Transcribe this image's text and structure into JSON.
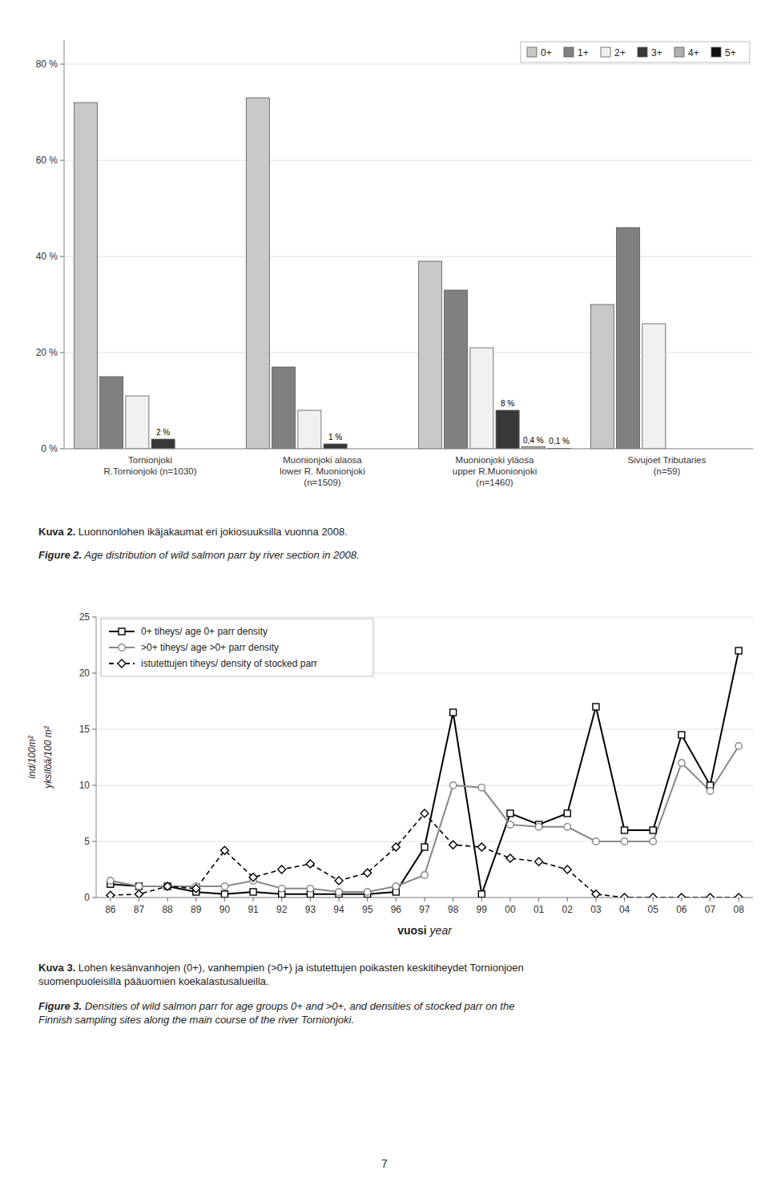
{
  "chart_data": [
    {
      "type": "bar",
      "categories": [
        "Tornionjoki\nR.Tornionjoki (n=1030)",
        "Muonionjoki alaosa\nlower R. Muonionjoki\n(n=1509)",
        "Muonionjoki yläosa\nupper R.Muonionjoki\n(n=1460)",
        "Sivujoet Tributaries\n(n=59)"
      ],
      "series": [
        {
          "name": "0+",
          "color": "#c8c8c8",
          "values": [
            72,
            73,
            39,
            30
          ]
        },
        {
          "name": "1+",
          "color": "#808080",
          "values": [
            15,
            17,
            33,
            46
          ]
        },
        {
          "name": "2+",
          "color": "#f0f0f0",
          "values": [
            11,
            8,
            21,
            26
          ]
        },
        {
          "name": "3+",
          "color": "#383838",
          "values": [
            2,
            1,
            8,
            0
          ],
          "value_labels": [
            "2 %",
            "1 %",
            "8 %",
            null
          ]
        },
        {
          "name": "4+",
          "color": "#b0b0b0",
          "values": [
            0,
            0,
            0.4,
            0
          ],
          "value_labels": [
            null,
            null,
            "0,4 %",
            null
          ]
        },
        {
          "name": "5+",
          "color": "#101010",
          "values": [
            0,
            0,
            0.1,
            0
          ],
          "value_labels": [
            null,
            null,
            "0,1 %",
            null
          ]
        }
      ],
      "ylim": [
        0,
        85
      ],
      "yticks": [
        {
          "value": 0,
          "label": "0 %"
        },
        {
          "value": 20,
          "label": "20 %"
        },
        {
          "value": 40,
          "label": "40 %"
        },
        {
          "value": 60,
          "label": "60 %"
        },
        {
          "value": 80,
          "label": "80 %"
        }
      ],
      "grid": true,
      "legend": "upper right",
      "annotations": [
        [
          "Kuva 2.",
          " Luonnonlohen ikäjakaumat eri jokiosuuksilla vuonna 2008."
        ],
        [
          "Figure 2.",
          " Age distribution of wild salmon parr by river section in 2008."
        ]
      ]
    },
    {
      "type": "line",
      "categories": [
        "86",
        "87",
        "88",
        "89",
        "90",
        "91",
        "92",
        "93",
        "94",
        "95",
        "96",
        "97",
        "98",
        "99",
        "00",
        "01",
        "02",
        "03",
        "04",
        "05",
        "06",
        "07",
        "08"
      ],
      "series": [
        {
          "name": "0+ tiheys/ age 0+ parr density",
          "color": "#000000",
          "marker": "square",
          "line_style": "solid",
          "values": [
            1.2,
            1.0,
            1.0,
            0.5,
            0.3,
            0.5,
            0.3,
            0.3,
            0.3,
            0.3,
            0.5,
            4.5,
            16.5,
            0.3,
            7.5,
            6.5,
            7.5,
            17.0,
            6.0,
            6.0,
            14.5,
            10.0,
            22.0
          ]
        },
        {
          "name": ">0+ tiheys/ age >0+ parr density",
          "color": "#888888",
          "marker": "circle",
          "line_style": "solid",
          "values": [
            1.5,
            1.0,
            1.0,
            1.0,
            1.0,
            1.5,
            0.8,
            0.8,
            0.5,
            0.5,
            1.0,
            2.0,
            10.0,
            9.8,
            6.5,
            6.3,
            6.3,
            5.0,
            5.0,
            5.0,
            12.0,
            9.5,
            13.5
          ]
        },
        {
          "name": "istutettujen tiheys/ density of stocked parr",
          "color": "#000000",
          "marker": "diamond",
          "line_style": "dashed",
          "values": [
            0.2,
            0.3,
            1.0,
            0.8,
            4.2,
            1.8,
            2.5,
            3.0,
            1.5,
            2.2,
            4.5,
            7.5,
            4.7,
            4.5,
            3.5,
            3.2,
            2.5,
            0.3,
            0.0,
            0.0,
            0.0,
            0.0,
            0.0
          ]
        }
      ],
      "ylim": [
        0,
        25
      ],
      "yticks": [
        0,
        5,
        10,
        15,
        20,
        25
      ],
      "grid": true,
      "legend": "upper left",
      "x_label": [
        "vuosi",
        " year"
      ],
      "y_label": [
        "ind/100m²",
        "yksilöä/100 m²"
      ],
      "annotations": [
        [
          "Kuva 3.",
          " Lohen kesänvanhojen (0+), vanhempien (>0+) ja istutettujen poikasten keskitiheydet Tornionjoen\nsuomenpuoleisilla pääuomien koekalastusalueilla."
        ],
        [
          "Figure 3.",
          " Densities of wild salmon parr for age groups 0+ and >0+, and densities of stocked parr on the\nFinnish sampling sites along the main course of the river Tornionjoki."
        ]
      ]
    }
  ],
  "page_number": "7"
}
